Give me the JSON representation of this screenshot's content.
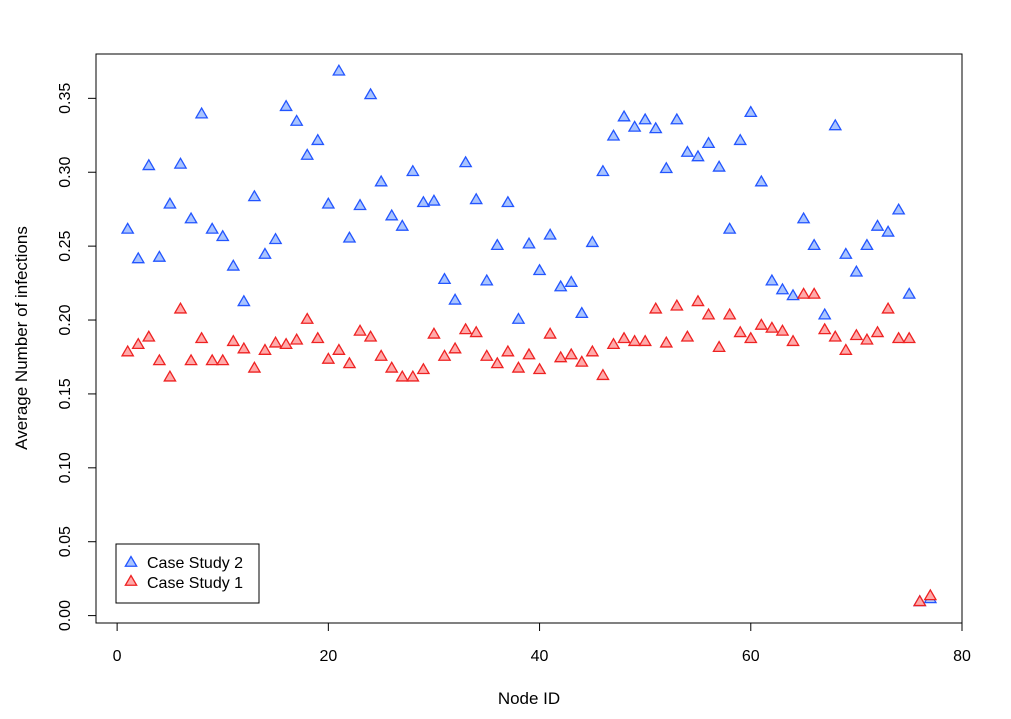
{
  "chart_data": {
    "type": "scatter",
    "title": "",
    "xlabel": "Node ID",
    "ylabel": "Average Number of infections",
    "xlim": [
      -2,
      80
    ],
    "ylim": [
      -0.005,
      0.38
    ],
    "xticks": [
      0,
      20,
      40,
      60,
      80
    ],
    "yticks": [
      0.0,
      0.05,
      0.1,
      0.15,
      0.2,
      0.25,
      0.3,
      0.35
    ],
    "ytick_labels": [
      "0.00",
      "0.05",
      "0.10",
      "0.15",
      "0.20",
      "0.25",
      "0.30",
      "0.35"
    ],
    "grid": false,
    "legend_position": "bottom-left",
    "series": [
      {
        "name": "Case Study 2",
        "color": "#2255ff",
        "fill": "#a9c4ff",
        "marker": "triangle",
        "x": [
          1,
          2,
          3,
          4,
          5,
          6,
          7,
          8,
          9,
          10,
          11,
          12,
          13,
          14,
          15,
          16,
          17,
          18,
          19,
          20,
          21,
          22,
          23,
          24,
          25,
          26,
          27,
          28,
          29,
          30,
          31,
          32,
          33,
          34,
          35,
          36,
          37,
          38,
          39,
          40,
          41,
          42,
          43,
          44,
          45,
          46,
          47,
          48,
          49,
          50,
          51,
          52,
          53,
          54,
          55,
          56,
          57,
          58,
          59,
          60,
          61,
          62,
          63,
          64,
          65,
          66,
          67,
          68,
          69,
          70,
          71,
          72,
          73,
          74,
          75,
          76,
          77
        ],
        "y": [
          0.261,
          0.241,
          0.304,
          0.242,
          0.278,
          0.305,
          0.268,
          0.339,
          0.261,
          0.256,
          0.236,
          0.212,
          0.283,
          0.244,
          0.254,
          0.344,
          0.334,
          0.311,
          0.321,
          0.278,
          0.368,
          0.255,
          0.277,
          0.352,
          0.293,
          0.27,
          0.263,
          0.3,
          0.279,
          0.28,
          0.227,
          0.213,
          0.306,
          0.281,
          0.226,
          0.25,
          0.279,
          0.2,
          0.251,
          0.233,
          0.257,
          0.222,
          0.225,
          0.204,
          0.252,
          0.3,
          0.324,
          0.337,
          0.33,
          0.335,
          0.329,
          0.302,
          0.335,
          0.313,
          0.31,
          0.319,
          0.303,
          0.261,
          0.321,
          0.34,
          0.293,
          0.226,
          0.22,
          0.216,
          0.268,
          0.25,
          0.203,
          0.331,
          0.244,
          0.232,
          0.25,
          0.263,
          0.259,
          0.274,
          0.217,
          0.009,
          0.011
        ]
      },
      {
        "name": "Case Study 1",
        "color": "#ee2222",
        "fill": "#ffaaaa",
        "marker": "triangle",
        "x": [
          1,
          2,
          3,
          4,
          5,
          6,
          7,
          8,
          9,
          10,
          11,
          12,
          13,
          14,
          15,
          16,
          17,
          18,
          19,
          20,
          21,
          22,
          23,
          24,
          25,
          26,
          27,
          28,
          29,
          30,
          31,
          32,
          33,
          34,
          35,
          36,
          37,
          38,
          39,
          40,
          41,
          42,
          43,
          44,
          45,
          46,
          47,
          48,
          49,
          50,
          51,
          52,
          53,
          54,
          55,
          56,
          57,
          58,
          59,
          60,
          61,
          62,
          63,
          64,
          65,
          66,
          67,
          68,
          69,
          70,
          71,
          72,
          73,
          74,
          75,
          76,
          77
        ],
        "y": [
          0.178,
          0.183,
          0.188,
          0.172,
          0.161,
          0.207,
          0.172,
          0.187,
          0.172,
          0.172,
          0.185,
          0.18,
          0.167,
          0.179,
          0.184,
          0.183,
          0.186,
          0.2,
          0.187,
          0.173,
          0.179,
          0.17,
          0.192,
          0.188,
          0.175,
          0.167,
          0.161,
          0.161,
          0.166,
          0.19,
          0.175,
          0.18,
          0.193,
          0.191,
          0.175,
          0.17,
          0.178,
          0.167,
          0.176,
          0.166,
          0.19,
          0.174,
          0.176,
          0.171,
          0.178,
          0.162,
          0.183,
          0.187,
          0.185,
          0.185,
          0.207,
          0.184,
          0.209,
          0.188,
          0.212,
          0.203,
          0.181,
          0.203,
          0.191,
          0.187,
          0.196,
          0.194,
          0.192,
          0.185,
          0.217,
          0.217,
          0.193,
          0.188,
          0.179,
          0.189,
          0.186,
          0.191,
          0.207,
          0.187,
          0.187,
          0.009,
          0.013
        ]
      }
    ],
    "legend": [
      {
        "label": "Case Study 2",
        "color": "#2255ff",
        "fill": "#a9c4ff"
      },
      {
        "label": "Case Study 1",
        "color": "#ee2222",
        "fill": "#ffaaaa"
      }
    ]
  }
}
